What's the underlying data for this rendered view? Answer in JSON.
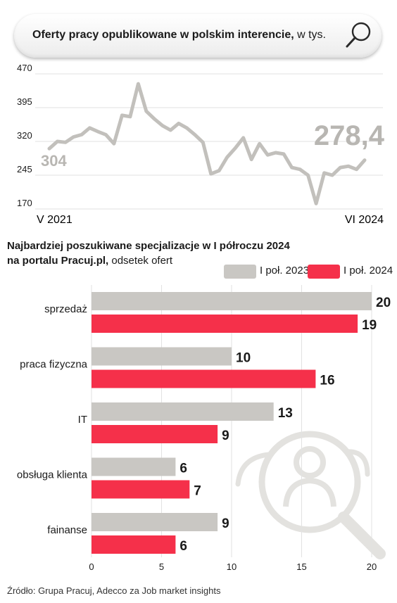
{
  "colors": {
    "series2023": "#c9c7c3",
    "series2024": "#f5304a",
    "line": "#c2c0bc",
    "grid": "#e2e2e2",
    "text": "#1a1a1a",
    "muted": "#555555",
    "watermark": "#e3e2df"
  },
  "icons": {
    "header": "search-icon",
    "decoration": "user-search-icon"
  },
  "header": {
    "title_bold": "Oferty pracy opublikowane w polskim  interencie,",
    "title_unit": "w tys."
  },
  "bar_section": {
    "title_line1": "Najbardziej poszukiwane specjalizacje w I półroczu 2024",
    "title_line2_bold": "na portalu Pracuj.pl,",
    "title_line2_rest": "odsetek ofert"
  },
  "legend": [
    "I poł. 2023",
    "I poł. 2024"
  ],
  "source": "Źródło: Grupa Pracuj, Adecco za Job market insights",
  "chart_data": [
    {
      "type": "line",
      "title": "Oferty pracy opublikowane w polskim  interencie, w tys.",
      "x_start_label": "V  2021",
      "x_end_label": "VI 2024",
      "yticks": [
        "470",
        "395",
        "320",
        "245",
        "170"
      ],
      "ylim": [
        170,
        470
      ],
      "grid": true,
      "start_value_label": "304",
      "end_value_label": "278,4",
      "series": [
        {
          "values": [
            304,
            320,
            318,
            330,
            335,
            350,
            342,
            335,
            315,
            378,
            375,
            448,
            387,
            370,
            355,
            345,
            360,
            350,
            335,
            318,
            248,
            255,
            285,
            305,
            328,
            280,
            315,
            290,
            295,
            292,
            262,
            258,
            245,
            182,
            250,
            245,
            262,
            265,
            258,
            278.4
          ]
        }
      ]
    },
    {
      "type": "bar",
      "orientation": "horizontal",
      "categories": [
        "sprzedaż",
        "praca fizyczna",
        "IT",
        "obsługa klienta",
        "fainanse"
      ],
      "series": [
        {
          "name": "I poł. 2023",
          "values": [
            20,
            10,
            13,
            6,
            9
          ]
        },
        {
          "name": "I poł. 2024",
          "values": [
            19,
            16,
            9,
            7,
            6
          ]
        }
      ],
      "xticks": [
        "0",
        "5",
        "10",
        "15",
        "20"
      ],
      "xlim": [
        0,
        20
      ],
      "grid": true,
      "legend_position": "top-right"
    }
  ]
}
